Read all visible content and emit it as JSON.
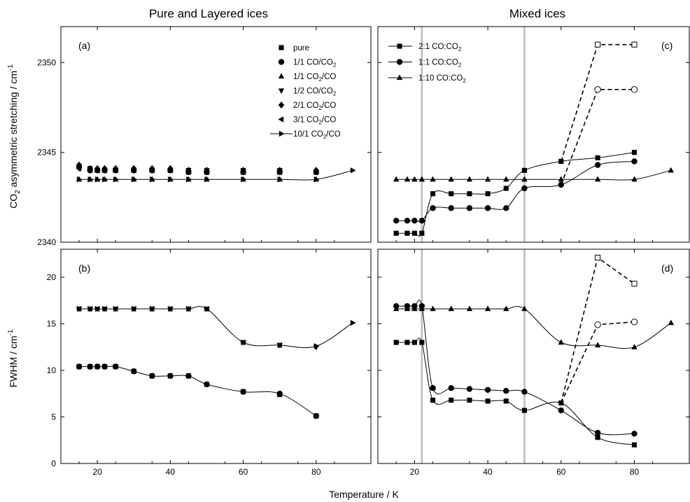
{
  "figure": {
    "left_title": "Pure and Layered ices",
    "right_title": "Mixed ices",
    "xlabel": "Temperature / K",
    "ylabel_top": "CO2 asymmetric stretching / cm-1",
    "ylabel_bottom": "FWHM / cm-1"
  },
  "colors": {
    "marker": "#000000",
    "line": "#000000",
    "guide": "#bbbbbb"
  },
  "chart_data": [
    {
      "id": "a",
      "type": "scatter",
      "panel_label": "(a)",
      "xlim": [
        10,
        95
      ],
      "ylim": [
        2340,
        2352
      ],
      "xticks": [
        20,
        40,
        60,
        80
      ],
      "yticks": [
        2340,
        2345,
        2350
      ],
      "legend_position": "top-right",
      "legend": [
        {
          "label": "pure",
          "marker": "square"
        },
        {
          "label": "1/1 CO/CO₂",
          "marker": "circle"
        },
        {
          "label": "1/1 CO₂/CO",
          "marker": "triangle-up"
        },
        {
          "label": "1/2 CO/CO₂",
          "marker": "triangle-down"
        },
        {
          "label": "2/1 CO₂/CO",
          "marker": "diamond"
        },
        {
          "label": "3/1 CO₂/CO",
          "marker": "triangle-left"
        },
        {
          "label": "10/1 CO₂/CO",
          "marker": "triangle-right",
          "line": true
        }
      ],
      "series": [
        {
          "marker": "square",
          "x": [
            15,
            18,
            20,
            22,
            25,
            30,
            35,
            40,
            45,
            50,
            60,
            70,
            80
          ],
          "y": [
            2344.2,
            2344.1,
            2344.0,
            2344.0,
            2344.0,
            2344.0,
            2344.0,
            2344.0,
            2343.9,
            2343.9,
            2343.9,
            2343.9,
            2343.9
          ]
        },
        {
          "marker": "circle",
          "x": [
            15,
            18,
            20,
            22,
            25,
            30,
            35,
            40,
            45,
            50,
            60,
            70,
            80
          ],
          "y": [
            2344.2,
            2344.0,
            2344.0,
            2344.0,
            2344.0,
            2344.0,
            2344.0,
            2344.0,
            2343.9,
            2343.9,
            2343.9,
            2343.9,
            2343.9
          ]
        },
        {
          "marker": "triangle-down",
          "x": [
            15,
            18,
            20,
            22,
            25,
            30,
            35,
            40,
            45,
            50,
            60,
            70,
            80
          ],
          "y": [
            2344.1,
            2344.0,
            2344.0,
            2344.0,
            2344.0,
            2344.0,
            2344.0,
            2344.0,
            2344.0,
            2344.0,
            2344.0,
            2344.0,
            2343.9
          ]
        },
        {
          "marker": "diamond",
          "x": [
            15,
            18,
            20,
            22,
            25,
            30,
            35,
            40,
            45,
            50,
            60,
            70,
            80
          ],
          "y": [
            2344.3,
            2344.1,
            2344.1,
            2344.1,
            2344.1,
            2344.1,
            2344.1,
            2344.1,
            2344.0,
            2344.0,
            2344.0,
            2344.0,
            2344.0
          ]
        },
        {
          "marker": "triangle-left",
          "x": [
            15,
            18,
            20,
            22,
            25,
            30,
            35,
            40,
            45,
            50,
            60,
            70,
            80
          ],
          "y": [
            2344.1,
            2344.0,
            2344.0,
            2344.0,
            2344.0,
            2344.0,
            2344.0,
            2344.0,
            2344.0,
            2343.9,
            2343.9,
            2343.9,
            2343.9
          ]
        },
        {
          "marker": "triangle-right",
          "line": true,
          "x": [
            15,
            18,
            20,
            22,
            25,
            30,
            35,
            40,
            45,
            50,
            60,
            70,
            80,
            90
          ],
          "y": [
            2343.5,
            2343.5,
            2343.5,
            2343.5,
            2343.5,
            2343.5,
            2343.5,
            2343.5,
            2343.5,
            2343.5,
            2343.5,
            2343.5,
            2343.5,
            2344.0
          ]
        },
        {
          "marker": "triangle-up",
          "x": [
            15,
            18,
            20,
            22,
            25,
            30,
            35,
            40,
            45,
            50,
            60,
            70,
            80
          ],
          "y": [
            2343.5,
            2343.5,
            2343.5,
            2343.5,
            2343.5,
            2343.5,
            2343.5,
            2343.5,
            2343.5,
            2343.5,
            2343.5,
            2343.5,
            2343.5
          ]
        }
      ]
    },
    {
      "id": "b",
      "type": "scatter",
      "panel_label": "(b)",
      "xlim": [
        10,
        95
      ],
      "ylim": [
        0,
        23
      ],
      "xticks": [
        20,
        40,
        60,
        80
      ],
      "yticks": [
        0,
        5,
        10,
        15,
        20
      ],
      "series": [
        {
          "marker": "square",
          "x": [
            15,
            18,
            20,
            22,
            25,
            30,
            35,
            40,
            45,
            50,
            60,
            70,
            80
          ],
          "y": [
            10.4,
            10.4,
            10.4,
            10.4,
            10.4,
            9.9,
            9.4,
            9.4,
            9.4,
            8.5,
            7.7,
            7.4,
            5.1
          ]
        },
        {
          "marker": "circle",
          "line": true,
          "x": [
            15,
            18,
            20,
            22,
            25,
            30,
            35,
            40,
            45,
            50,
            60,
            70,
            80
          ],
          "y": [
            10.4,
            10.4,
            10.4,
            10.4,
            10.4,
            9.9,
            9.4,
            9.4,
            9.4,
            8.5,
            7.7,
            7.5,
            5.1
          ]
        },
        {
          "marker": "triangle-down",
          "x": [
            15,
            18,
            20,
            22,
            25,
            30,
            35,
            40,
            45,
            50,
            60,
            70,
            80
          ],
          "y": [
            16.6,
            16.6,
            16.6,
            16.6,
            16.6,
            16.6,
            16.6,
            16.6,
            16.6,
            16.6,
            13.0,
            12.7,
            12.5
          ]
        },
        {
          "marker": "triangle-left",
          "x": [
            15,
            18,
            20,
            22,
            25,
            30,
            35,
            40,
            45,
            50,
            60,
            70
          ],
          "y": [
            16.6,
            16.6,
            16.6,
            16.6,
            16.6,
            16.6,
            16.6,
            16.6,
            16.6,
            16.6,
            13.0,
            12.7
          ]
        },
        {
          "marker": "triangle-right",
          "line": true,
          "x": [
            15,
            18,
            20,
            22,
            25,
            30,
            35,
            40,
            45,
            50,
            60,
            70,
            80,
            90
          ],
          "y": [
            16.6,
            16.6,
            16.6,
            16.6,
            16.6,
            16.6,
            16.6,
            16.6,
            16.6,
            16.6,
            13.0,
            12.7,
            12.6,
            15.1
          ]
        }
      ]
    },
    {
      "id": "c",
      "type": "line",
      "panel_label": "(c)",
      "xlim": [
        10,
        95
      ],
      "ylim": [
        2340,
        2352
      ],
      "xticks": [
        20,
        40,
        60,
        80
      ],
      "yticks": [
        2340,
        2345,
        2350
      ],
      "legend_position": "top-left",
      "vlines": [
        22,
        50
      ],
      "legend": [
        {
          "label": "2:1 CO:CO₂",
          "marker": "square"
        },
        {
          "label": "1:1 CO:CO₂",
          "marker": "circle"
        },
        {
          "label": "1:10 CO:CO₂",
          "marker": "triangle-up"
        }
      ],
      "series": [
        {
          "marker": "square",
          "x": [
            15,
            18,
            20,
            22,
            25,
            30,
            35,
            40,
            45,
            50,
            60,
            70,
            80
          ],
          "y": [
            2340.5,
            2340.5,
            2340.5,
            2340.5,
            2342.7,
            2342.7,
            2342.7,
            2342.7,
            2343.0,
            2344.0,
            2344.5,
            2344.7,
            2345.0
          ]
        },
        {
          "marker": "square-open",
          "dashed": true,
          "x": [
            60,
            70,
            80
          ],
          "y": [
            2344.5,
            2351.0,
            2351.0
          ]
        },
        {
          "marker": "circle",
          "x": [
            15,
            18,
            20,
            22,
            25,
            30,
            35,
            40,
            45,
            50,
            60,
            70,
            80
          ],
          "y": [
            2341.2,
            2341.2,
            2341.2,
            2341.2,
            2341.9,
            2341.9,
            2341.9,
            2341.9,
            2341.9,
            2343.0,
            2343.2,
            2344.3,
            2344.5
          ]
        },
        {
          "marker": "circle-open",
          "dashed": true,
          "x": [
            60,
            70,
            80
          ],
          "y": [
            2343.2,
            2348.5,
            2348.5
          ]
        },
        {
          "marker": "triangle-up",
          "x": [
            15,
            18,
            20,
            22,
            25,
            30,
            35,
            40,
            45,
            50,
            60,
            70,
            80,
            90
          ],
          "y": [
            2343.5,
            2343.5,
            2343.5,
            2343.5,
            2343.5,
            2343.5,
            2343.5,
            2343.5,
            2343.5,
            2343.5,
            2343.5,
            2343.5,
            2343.5,
            2344.0
          ]
        }
      ]
    },
    {
      "id": "d",
      "type": "line",
      "panel_label": "(d)",
      "xlim": [
        10,
        95
      ],
      "ylim": [
        0,
        23
      ],
      "xticks": [
        20,
        40,
        60,
        80
      ],
      "yticks": [
        0,
        5,
        10,
        15,
        20
      ],
      "vlines": [
        22,
        50
      ],
      "series": [
        {
          "marker": "square",
          "x": [
            15,
            18,
            20,
            22,
            25,
            30,
            35,
            40,
            45,
            50,
            60,
            70,
            80
          ],
          "y": [
            13.0,
            13.0,
            13.0,
            13.0,
            6.8,
            6.8,
            6.8,
            6.7,
            6.7,
            5.7,
            6.5,
            2.8,
            2.0
          ]
        },
        {
          "marker": "square-open",
          "dashed": true,
          "x": [
            60,
            70,
            80
          ],
          "y": [
            6.5,
            22.1,
            19.3
          ]
        },
        {
          "marker": "circle",
          "x": [
            15,
            18,
            20,
            22,
            25,
            30,
            35,
            40,
            45,
            50,
            60,
            70,
            80
          ],
          "y": [
            16.9,
            16.9,
            16.9,
            16.9,
            8.1,
            8.1,
            8.0,
            7.9,
            7.8,
            7.7,
            5.7,
            3.3,
            3.2
          ]
        },
        {
          "marker": "circle-open",
          "dashed": true,
          "x": [
            60,
            70,
            80
          ],
          "y": [
            6.5,
            14.9,
            15.2
          ]
        },
        {
          "marker": "triangle-up",
          "x": [
            15,
            18,
            20,
            22,
            25,
            30,
            35,
            40,
            45,
            50,
            60,
            70,
            80,
            90
          ],
          "y": [
            16.6,
            16.6,
            16.6,
            16.6,
            16.6,
            16.6,
            16.6,
            16.6,
            16.6,
            16.6,
            13.0,
            12.7,
            12.5,
            15.1
          ]
        }
      ]
    }
  ]
}
